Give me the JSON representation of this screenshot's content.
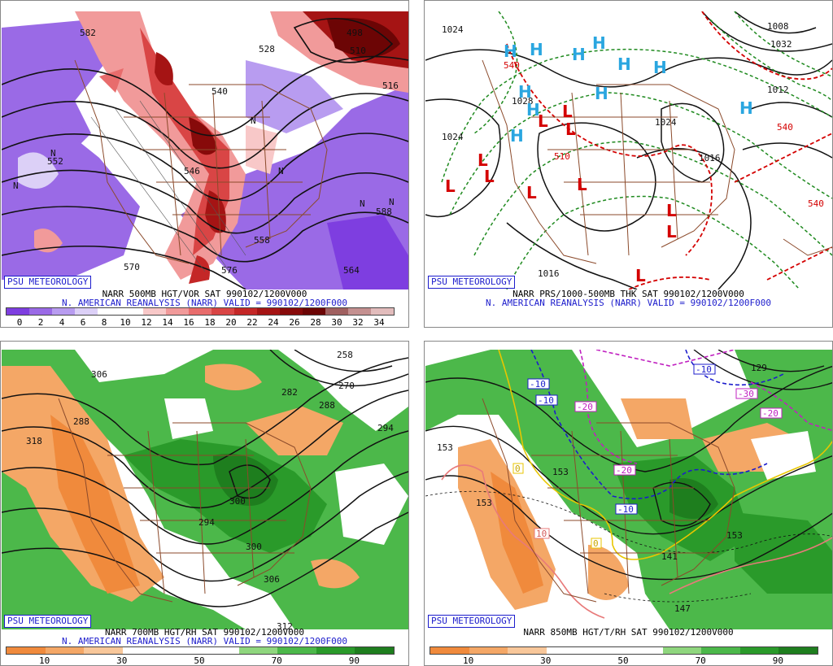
{
  "panels": [
    {
      "id": "vort",
      "badge": "PSU METEOROLOGY",
      "title_line": "NARR 500MB HGT/VOR SAT 990102/1200V000",
      "valid_line": "N. AMERICAN REANALYSIS (NARR) VALID = 990102/1200F000",
      "scale_ticks": [
        "0",
        "2",
        "4",
        "6",
        "8",
        "10",
        "12",
        "14",
        "16",
        "18",
        "20",
        "22",
        "24",
        "26",
        "28",
        "30",
        "32",
        "34"
      ],
      "scale_colors": [
        "#7e3ee0",
        "#9a6ae6",
        "#b89cf0",
        "#dcd0f7",
        "#ffffff",
        "#ffffff",
        "#f8c8c8",
        "#f19a9a",
        "#e86c6c",
        "#d94545",
        "#c42727",
        "#a51414",
        "#870a0a",
        "#6c0505",
        "#a06060",
        "#c49090",
        "#e2bcbc"
      ],
      "contour_labels": [
        "498",
        "510",
        "516",
        "528",
        "540",
        "546",
        "552",
        "558",
        "564",
        "570",
        "576",
        "582",
        "588"
      ],
      "map_letters": [
        "N",
        "N",
        "N",
        "N",
        "N",
        "N"
      ]
    },
    {
      "id": "thk",
      "badge": "PSU METEOROLOGY",
      "title_line": "NARR PRS/1000-500MB THK SAT 990102/1200V000",
      "valid_line": "N. AMERICAN REANALYSIS (NARR) VALID = 990102/1200F000",
      "isobar_labels": [
        "1024",
        "1024",
        "1028",
        "1024",
        "1016",
        "1016",
        "1012",
        "1008",
        "1032"
      ],
      "thickness_labels": [
        "540",
        "510",
        "540",
        "540"
      ],
      "highs": [
        "H",
        "H",
        "H",
        "H",
        "H",
        "H",
        "H",
        "H",
        "H",
        "H",
        "H"
      ],
      "lows": [
        "L",
        "L",
        "L",
        "L",
        "L",
        "L",
        "L",
        "L",
        "L",
        "L",
        "L"
      ]
    },
    {
      "id": "rh700",
      "badge": "PSU METEOROLOGY",
      "title_line": "NARR 700MB HGT/RH SAT 990102/1200V000",
      "valid_line": "N. AMERICAN REANALYSIS (NARR) VALID = 990102/1200F000",
      "scale_ticks": [
        "10",
        "30",
        "50",
        "70",
        "90"
      ],
      "scale_colors": [
        "#f08a3c",
        "#f4a766",
        "#f8c79a",
        "#ffffff",
        "#ffffff",
        "#ffffff",
        "#8fd67e",
        "#4cb84a",
        "#2a9a2a",
        "#1e7e1e"
      ],
      "contour_labels": [
        "258",
        "270",
        "282",
        "288",
        "294",
        "300",
        "306",
        "312",
        "318",
        "306",
        "294",
        "288",
        "300"
      ]
    },
    {
      "id": "t850",
      "badge": "PSU METEOROLOGY",
      "title_line": "NARR 850MB HGT/T/RH SAT 990102/1200V000",
      "scale_ticks": [
        "10",
        "30",
        "50",
        "70",
        "90"
      ],
      "scale_colors": [
        "#f08a3c",
        "#f4a766",
        "#f8c79a",
        "#ffffff",
        "#ffffff",
        "#ffffff",
        "#8fd67e",
        "#4cb84a",
        "#2a9a2a",
        "#1e7e1e"
      ],
      "height_labels": [
        "153",
        "153",
        "153",
        "141",
        "147",
        "129",
        "153"
      ],
      "temp_labels": [
        "-10",
        "-10",
        "-10",
        "-10",
        "-20",
        "-20",
        "-30",
        "-20",
        "0",
        "0",
        "10"
      ]
    }
  ]
}
